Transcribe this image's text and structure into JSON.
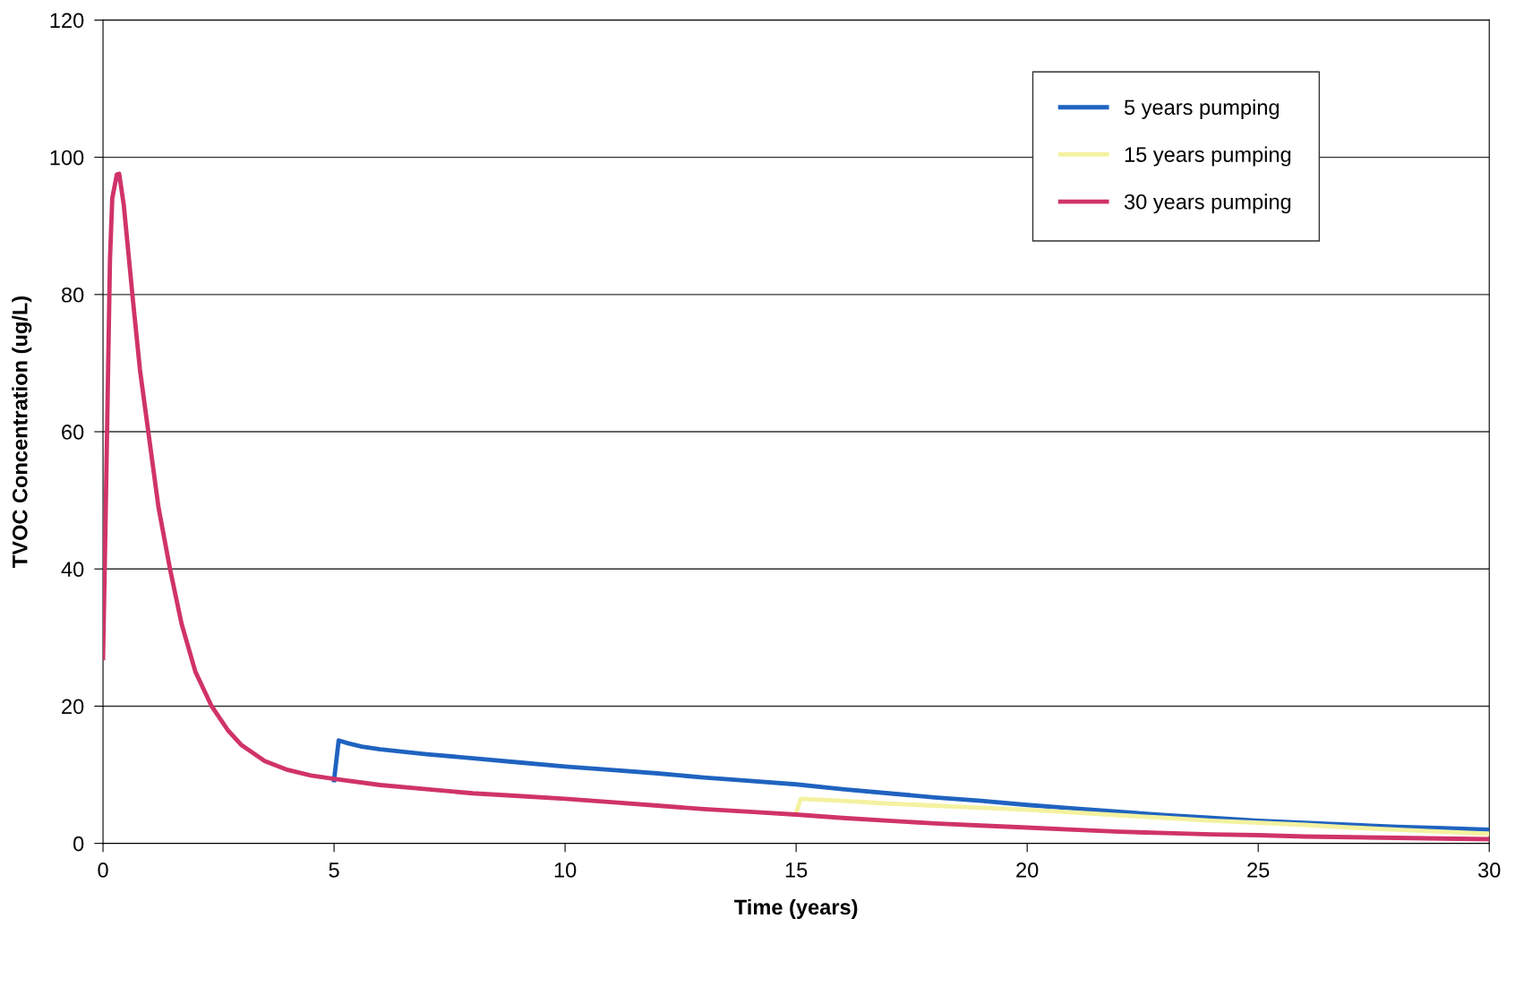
{
  "chart_data": {
    "type": "line",
    "xlabel": "Time (years)",
    "ylabel": "TVOC Concentration (ug/L)",
    "xlim": [
      0,
      30
    ],
    "ylim": [
      0,
      120
    ],
    "xticks": [
      0,
      5,
      10,
      15,
      20,
      25,
      30
    ],
    "yticks": [
      0,
      20,
      40,
      60,
      80,
      100,
      120
    ],
    "grid": "y",
    "legend": "top right",
    "marker": "none",
    "line_style": "solid",
    "series": [
      {
        "name": "5 years pumping",
        "color": "#1f63c0",
        "x": [
          5,
          5.1,
          5.3,
          5.6,
          6,
          7,
          8,
          9,
          10,
          11,
          12,
          13,
          14,
          15,
          16,
          17,
          18,
          19,
          20,
          21,
          22,
          23,
          24,
          25,
          26,
          27,
          28,
          29,
          30
        ],
        "values": [
          9.2,
          15,
          14.6,
          14.1,
          13.7,
          13,
          12.4,
          11.8,
          11.2,
          10.7,
          10.2,
          9.6,
          9.1,
          8.6,
          7.9,
          7.3,
          6.7,
          6.2,
          5.6,
          5.1,
          4.6,
          4.1,
          3.7,
          3.3,
          3,
          2.7,
          2.4,
          2.2,
          2
        ]
      },
      {
        "name": "15 years pumping",
        "color": "#f4f2a0",
        "x": [
          15,
          15.1,
          16,
          17,
          18,
          19,
          20,
          21,
          22,
          23,
          24,
          25,
          26,
          27,
          28,
          29,
          30
        ],
        "values": [
          4.4,
          6.5,
          6.2,
          5.8,
          5.5,
          5.2,
          4.9,
          4.5,
          4.1,
          3.7,
          3.3,
          3,
          2.7,
          2.3,
          2,
          1.7,
          1.4
        ]
      },
      {
        "name": "30 years pumping",
        "color": "#d0336a",
        "x": [
          0,
          0.05,
          0.1,
          0.15,
          0.2,
          0.3,
          0.35,
          0.45,
          0.55,
          0.65,
          0.8,
          1,
          1.2,
          1.45,
          1.7,
          2,
          2.35,
          2.7,
          3,
          3.5,
          4,
          4.5,
          5,
          6,
          7,
          8,
          9,
          10,
          11,
          12,
          13,
          14,
          15,
          16,
          17,
          18,
          19,
          20,
          21,
          22,
          23,
          24,
          25,
          26,
          27,
          28,
          29,
          30
        ],
        "values": [
          27,
          45,
          65,
          85,
          94,
          97.5,
          97.6,
          93,
          86,
          79,
          69,
          59,
          49,
          40,
          32,
          25,
          20,
          16.5,
          14.3,
          12,
          10.7,
          9.9,
          9.4,
          8.5,
          7.9,
          7.3,
          6.9,
          6.5,
          6,
          5.5,
          5,
          4.6,
          4.2,
          3.7,
          3.3,
          2.9,
          2.6,
          2.3,
          2,
          1.7,
          1.5,
          1.3,
          1.2,
          1,
          0.9,
          0.8,
          0.7,
          0.6
        ]
      }
    ]
  }
}
